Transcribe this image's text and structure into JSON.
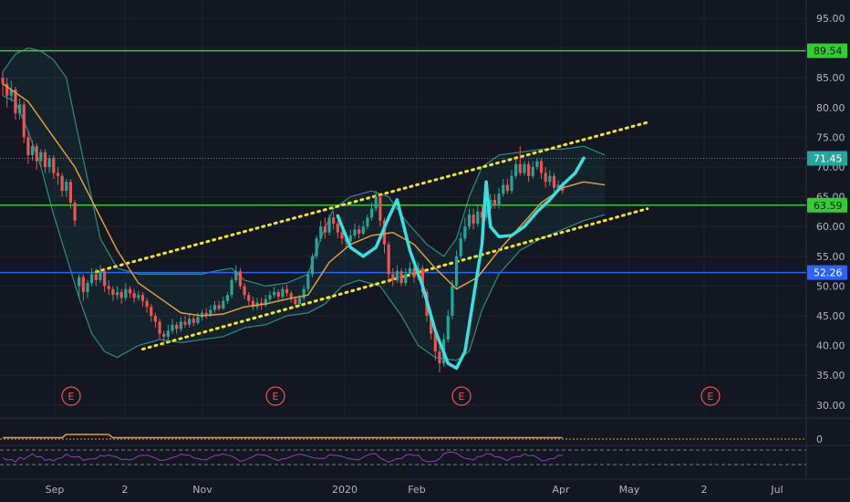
{
  "colors": {
    "background": "#131722",
    "grid": "#1e222d",
    "candle_up": "#26a69a",
    "candle_down": "#ef5350",
    "ma": "#e39b3b",
    "bollinger": "#2e8c83",
    "bollinger_fill": "rgba(38,166,154,0.08)",
    "green_line": "#33cc33",
    "blue_line": "#2962ff",
    "channel": "#f5e614",
    "pattern": "#3ae0e0",
    "dotted_price": "#26a69a",
    "earnings": "#ef5350",
    "rsi": "#8e44ad"
  },
  "chart_data": {
    "type": "candlestick",
    "ylim": [
      30,
      96
    ],
    "y_ticks": [
      "95.00",
      "90.00",
      "85.00",
      "80.00",
      "75.00",
      "70.00",
      "65.00",
      "60.00",
      "55.00",
      "50.00",
      "45.00",
      "40.00",
      "35.00",
      "30.00"
    ],
    "x_ticks": [
      "Sep",
      "2",
      "Nov",
      "2020",
      "Feb",
      "Apr",
      "May",
      "2",
      "Jul"
    ],
    "horizontal_levels": [
      {
        "value": 89.54,
        "label": "89.54",
        "color": "#33cc33"
      },
      {
        "value": 63.59,
        "label": "63.59",
        "color": "#33cc33"
      },
      {
        "value": 52.26,
        "label": "52.26",
        "color": "#2962ff"
      }
    ],
    "current_price": {
      "value": 71.45,
      "label": "71.45"
    },
    "earnings_markers": [
      "E",
      "E",
      "E",
      "E"
    ],
    "candles": [
      [
        85.0,
        84.0,
        86.0,
        82.0
      ],
      [
        84.0,
        82.0,
        85.0,
        80.0
      ],
      [
        82.0,
        83.0,
        84.5,
        81.0
      ],
      [
        83.0,
        79.0,
        83.5,
        78.0
      ],
      [
        79.0,
        80.5,
        81.5,
        78.0
      ],
      [
        80.5,
        75.0,
        81.0,
        74.0
      ],
      [
        75.0,
        72.0,
        76.0,
        70.5
      ],
      [
        72.0,
        73.5,
        74.5,
        71.0
      ],
      [
        73.5,
        71.0,
        74.0,
        69.5
      ],
      [
        71.0,
        72.5,
        73.0,
        70.0
      ],
      [
        72.5,
        70.0,
        73.0,
        69.0
      ],
      [
        70.0,
        71.5,
        72.0,
        69.0
      ],
      [
        71.5,
        69.0,
        72.0,
        68.0
      ],
      [
        69.0,
        68.5,
        70.0,
        67.0
      ],
      [
        68.5,
        66.0,
        69.0,
        65.0
      ],
      [
        66.0,
        67.5,
        68.0,
        65.0
      ],
      [
        67.5,
        64.0,
        68.0,
        63.0
      ],
      [
        64.0,
        61.0,
        64.5,
        60.0
      ],
      [
        50.0,
        51.5,
        52.0,
        48.0
      ],
      [
        51.5,
        49.0,
        52.0,
        47.5
      ],
      [
        49.0,
        50.5,
        51.0,
        48.0
      ],
      [
        50.5,
        52.0,
        53.0,
        50.0
      ],
      [
        52.0,
        51.0,
        53.0,
        50.0
      ],
      [
        51.0,
        52.5,
        53.5,
        50.5
      ],
      [
        52.5,
        50.0,
        53.0,
        49.0
      ],
      [
        50.0,
        49.5,
        51.0,
        48.5
      ],
      [
        49.5,
        48.5,
        50.0,
        47.5
      ],
      [
        48.5,
        49.0,
        50.0,
        47.8
      ],
      [
        49.0,
        48.0,
        49.5,
        47.0
      ],
      [
        48.0,
        49.5,
        50.5,
        47.5
      ],
      [
        49.5,
        48.8,
        50.0,
        48.0
      ],
      [
        48.8,
        48.0,
        49.5,
        47.2
      ],
      [
        48.0,
        48.5,
        49.2,
        47.5
      ],
      [
        48.5,
        47.5,
        49.0,
        46.5
      ],
      [
        47.5,
        46.5,
        48.0,
        45.5
      ],
      [
        46.5,
        45.0,
        47.0,
        44.0
      ],
      [
        45.0,
        44.0,
        45.5,
        43.0
      ],
      [
        44.0,
        42.0,
        44.5,
        41.0
      ],
      [
        42.0,
        41.5,
        42.5,
        40.0
      ],
      [
        41.5,
        42.5,
        43.5,
        40.5
      ],
      [
        42.5,
        43.5,
        44.5,
        42.0
      ],
      [
        43.5,
        42.8,
        44.0,
        42.0
      ],
      [
        42.8,
        44.0,
        44.8,
        42.3
      ],
      [
        44.0,
        43.5,
        45.0,
        43.0
      ],
      [
        43.5,
        44.5,
        45.2,
        43.0
      ],
      [
        44.5,
        43.8,
        45.0,
        43.2
      ],
      [
        43.8,
        44.8,
        45.5,
        43.5
      ],
      [
        44.8,
        45.5,
        46.0,
        44.2
      ],
      [
        45.5,
        45.0,
        46.3,
        44.5
      ],
      [
        45.0,
        46.0,
        46.8,
        44.8
      ],
      [
        46.0,
        46.8,
        47.5,
        45.5
      ],
      [
        46.8,
        46.2,
        47.5,
        45.8
      ],
      [
        46.2,
        47.5,
        48.2,
        46.0
      ],
      [
        47.5,
        48.5,
        49.0,
        47.0
      ],
      [
        48.5,
        51.0,
        51.5,
        48.0
      ],
      [
        51.0,
        52.5,
        53.5,
        50.5
      ],
      [
        52.5,
        50.0,
        53.0,
        49.5
      ],
      [
        50.0,
        48.5,
        50.5,
        47.8
      ],
      [
        48.5,
        47.5,
        49.0,
        46.8
      ],
      [
        47.5,
        46.5,
        48.2,
        46.0
      ],
      [
        46.5,
        47.2,
        48.0,
        46.0
      ],
      [
        47.2,
        46.8,
        48.0,
        46.0
      ],
      [
        46.8,
        47.8,
        48.5,
        46.5
      ],
      [
        47.8,
        48.5,
        49.2,
        47.2
      ],
      [
        48.5,
        49.0,
        49.8,
        48.0
      ],
      [
        49.0,
        48.2,
        49.5,
        47.5
      ],
      [
        48.2,
        49.5,
        50.0,
        47.8
      ],
      [
        49.5,
        48.8,
        50.2,
        48.2
      ],
      [
        48.8,
        47.8,
        49.2,
        47.2
      ],
      [
        47.8,
        47.0,
        48.3,
        46.5
      ],
      [
        47.0,
        48.0,
        48.5,
        46.5
      ],
      [
        48.0,
        49.5,
        50.2,
        47.5
      ],
      [
        49.5,
        52.0,
        52.5,
        49.0
      ],
      [
        52.0,
        55.0,
        55.5,
        51.5
      ],
      [
        55.0,
        58.0,
        58.5,
        54.5
      ],
      [
        58.0,
        60.0,
        61.0,
        57.5
      ],
      [
        60.0,
        59.0,
        61.5,
        58.0
      ],
      [
        59.0,
        61.5,
        62.0,
        58.5
      ],
      [
        61.5,
        60.5,
        62.5,
        59.5
      ],
      [
        60.5,
        59.0,
        61.0,
        58.0
      ],
      [
        59.0,
        58.0,
        59.5,
        57.0
      ],
      [
        58.0,
        57.5,
        59.0,
        56.5
      ],
      [
        57.5,
        58.5,
        59.5,
        57.0
      ],
      [
        58.5,
        59.5,
        60.5,
        58.0
      ],
      [
        59.5,
        58.8,
        60.2,
        58.0
      ],
      [
        58.8,
        60.0,
        61.0,
        58.5
      ],
      [
        60.0,
        61.5,
        62.0,
        59.5
      ],
      [
        61.5,
        63.0,
        64.0,
        61.0
      ],
      [
        63.0,
        65.0,
        66.0,
        62.5
      ],
      [
        65.0,
        61.0,
        65.5,
        60.0
      ],
      [
        61.0,
        57.0,
        61.5,
        55.5
      ],
      [
        57.0,
        52.0,
        57.5,
        50.5
      ],
      [
        52.0,
        51.0,
        53.0,
        50.0
      ],
      [
        51.0,
        52.5,
        53.5,
        50.5
      ],
      [
        52.5,
        50.5,
        53.0,
        50.0
      ],
      [
        50.5,
        52.0,
        53.0,
        50.0
      ],
      [
        52.0,
        53.0,
        54.0,
        51.5
      ],
      [
        53.0,
        51.5,
        53.5,
        50.5
      ],
      [
        51.5,
        53.0,
        54.0,
        51.0
      ],
      [
        53.0,
        49.0,
        53.5,
        48.0
      ],
      [
        49.0,
        45.0,
        49.5,
        44.0
      ],
      [
        45.0,
        42.0,
        46.0,
        41.0
      ],
      [
        42.0,
        39.0,
        43.0,
        37.5
      ],
      [
        39.0,
        37.0,
        40.0,
        35.5
      ],
      [
        37.0,
        41.0,
        42.0,
        36.5
      ],
      [
        41.0,
        45.0,
        46.0,
        40.5
      ],
      [
        45.0,
        50.0,
        51.0,
        44.5
      ],
      [
        50.0,
        55.0,
        56.0,
        49.5
      ],
      [
        55.0,
        58.0,
        59.0,
        54.5
      ],
      [
        58.0,
        60.0,
        61.5,
        57.5
      ],
      [
        60.0,
        62.0,
        63.0,
        59.5
      ],
      [
        62.0,
        60.5,
        63.0,
        59.5
      ],
      [
        60.5,
        62.5,
        63.5,
        60.0
      ],
      [
        62.5,
        61.5,
        63.5,
        60.8
      ],
      [
        61.5,
        63.0,
        64.0,
        61.0
      ],
      [
        63.0,
        64.5,
        65.5,
        62.5
      ],
      [
        64.5,
        63.5,
        65.5,
        63.0
      ],
      [
        63.5,
        65.5,
        66.5,
        63.0
      ],
      [
        65.5,
        67.0,
        68.0,
        65.0
      ],
      [
        67.0,
        66.0,
        68.0,
        65.5
      ],
      [
        66.0,
        68.5,
        69.5,
        65.5
      ],
      [
        68.5,
        70.5,
        71.5,
        68.0
      ],
      [
        70.5,
        69.0,
        73.5,
        68.5
      ],
      [
        69.0,
        70.5,
        71.0,
        68.5
      ],
      [
        70.5,
        68.5,
        71.0,
        67.5
      ],
      [
        68.5,
        70.0,
        71.0,
        68.0
      ],
      [
        70.0,
        71.0,
        71.5,
        69.5
      ],
      [
        71.0,
        69.0,
        71.5,
        68.0
      ],
      [
        69.0,
        67.5,
        70.0,
        66.5
      ],
      [
        67.5,
        68.5,
        69.5,
        66.8
      ],
      [
        68.5,
        66.5,
        69.0,
        65.8
      ],
      [
        66.5,
        67.0,
        67.8,
        66.0
      ],
      [
        67.0,
        66.0,
        67.5,
        65.5
      ]
    ],
    "ma20": [
      [
        0,
        84
      ],
      [
        6,
        81
      ],
      [
        12,
        75
      ],
      [
        17,
        70
      ],
      [
        22,
        63
      ],
      [
        27,
        56
      ],
      [
        32,
        50.5
      ],
      [
        37,
        48
      ],
      [
        42,
        45.5
      ],
      [
        47,
        45
      ],
      [
        52,
        45.3
      ],
      [
        57,
        46.5
      ],
      [
        62,
        47
      ],
      [
        67,
        47.8
      ],
      [
        72,
        48.5
      ],
      [
        77,
        54
      ],
      [
        82,
        57
      ],
      [
        87,
        58.5
      ],
      [
        92,
        59
      ],
      [
        97,
        57
      ],
      [
        102,
        53
      ],
      [
        107,
        49.5
      ],
      [
        112,
        51.5
      ],
      [
        117,
        56
      ],
      [
        122,
        60
      ],
      [
        127,
        64
      ],
      [
        132,
        66.5
      ],
      [
        137,
        67.5
      ],
      [
        142,
        67
      ]
    ],
    "bollinger_upper": [
      [
        0,
        86
      ],
      [
        3,
        89
      ],
      [
        6,
        90
      ],
      [
        9,
        89.5
      ],
      [
        12,
        88
      ],
      [
        15,
        85
      ],
      [
        17,
        78
      ],
      [
        20,
        68
      ],
      [
        23,
        58
      ],
      [
        27,
        53
      ],
      [
        32,
        52
      ],
      [
        37,
        52
      ],
      [
        42,
        52
      ],
      [
        47,
        52
      ],
      [
        50,
        52.5
      ],
      [
        54,
        53
      ],
      [
        57,
        51
      ],
      [
        62,
        50
      ],
      [
        67,
        50.5
      ],
      [
        72,
        52
      ],
      [
        75,
        58
      ],
      [
        78,
        63
      ],
      [
        82,
        65
      ],
      [
        87,
        66
      ],
      [
        91,
        65
      ],
      [
        95,
        61
      ],
      [
        100,
        57
      ],
      [
        104,
        55
      ],
      [
        107,
        58
      ],
      [
        110,
        65
      ],
      [
        113,
        70
      ],
      [
        117,
        72
      ],
      [
        122,
        72.5
      ],
      [
        127,
        73
      ],
      [
        132,
        73
      ],
      [
        137,
        73.5
      ],
      [
        142,
        72
      ]
    ],
    "bollinger_lower": [
      [
        0,
        82
      ],
      [
        3,
        81
      ],
      [
        6,
        76
      ],
      [
        9,
        70
      ],
      [
        12,
        62
      ],
      [
        15,
        55
      ],
      [
        18,
        48
      ],
      [
        21,
        42
      ],
      [
        24,
        39
      ],
      [
        27,
        38
      ],
      [
        32,
        40
      ],
      [
        37,
        41
      ],
      [
        42,
        40.5
      ],
      [
        47,
        41
      ],
      [
        52,
        41.5
      ],
      [
        57,
        43
      ],
      [
        62,
        43.5
      ],
      [
        67,
        45
      ],
      [
        72,
        45.5
      ],
      [
        76,
        47
      ],
      [
        80,
        50
      ],
      [
        84,
        51
      ],
      [
        89,
        50
      ],
      [
        94,
        45
      ],
      [
        98,
        40
      ],
      [
        102,
        38
      ],
      [
        107,
        37.5
      ],
      [
        110,
        39
      ],
      [
        113,
        46
      ],
      [
        117,
        52
      ],
      [
        122,
        56
      ],
      [
        127,
        58
      ],
      [
        132,
        59.5
      ],
      [
        137,
        61
      ],
      [
        142,
        62
      ]
    ],
    "channel_upper": [
      [
        22,
        52.4
      ],
      [
        152,
        77.5
      ]
    ],
    "channel_lower": [
      [
        33,
        39.4
      ],
      [
        152,
        63.0
      ]
    ],
    "pattern": [
      [
        79,
        61.8
      ],
      [
        82,
        56.5
      ],
      [
        85,
        55
      ],
      [
        88,
        56.5
      ],
      [
        91,
        61.5
      ],
      [
        93,
        64.5
      ],
      [
        96,
        56
      ],
      [
        99,
        50
      ],
      [
        102,
        42.5
      ],
      [
        105,
        37
      ],
      [
        107,
        36.2
      ],
      [
        109,
        39
      ],
      [
        111,
        48
      ],
      [
        113,
        57
      ],
      [
        113.5,
        62.5
      ],
      [
        114,
        67.5
      ],
      [
        115,
        60
      ],
      [
        117,
        58.3
      ],
      [
        120,
        58.5
      ],
      [
        123,
        60
      ],
      [
        126,
        62.5
      ],
      [
        129,
        64.5
      ],
      [
        132,
        67
      ],
      [
        135,
        69
      ],
      [
        137,
        71.5
      ]
    ]
  }
}
